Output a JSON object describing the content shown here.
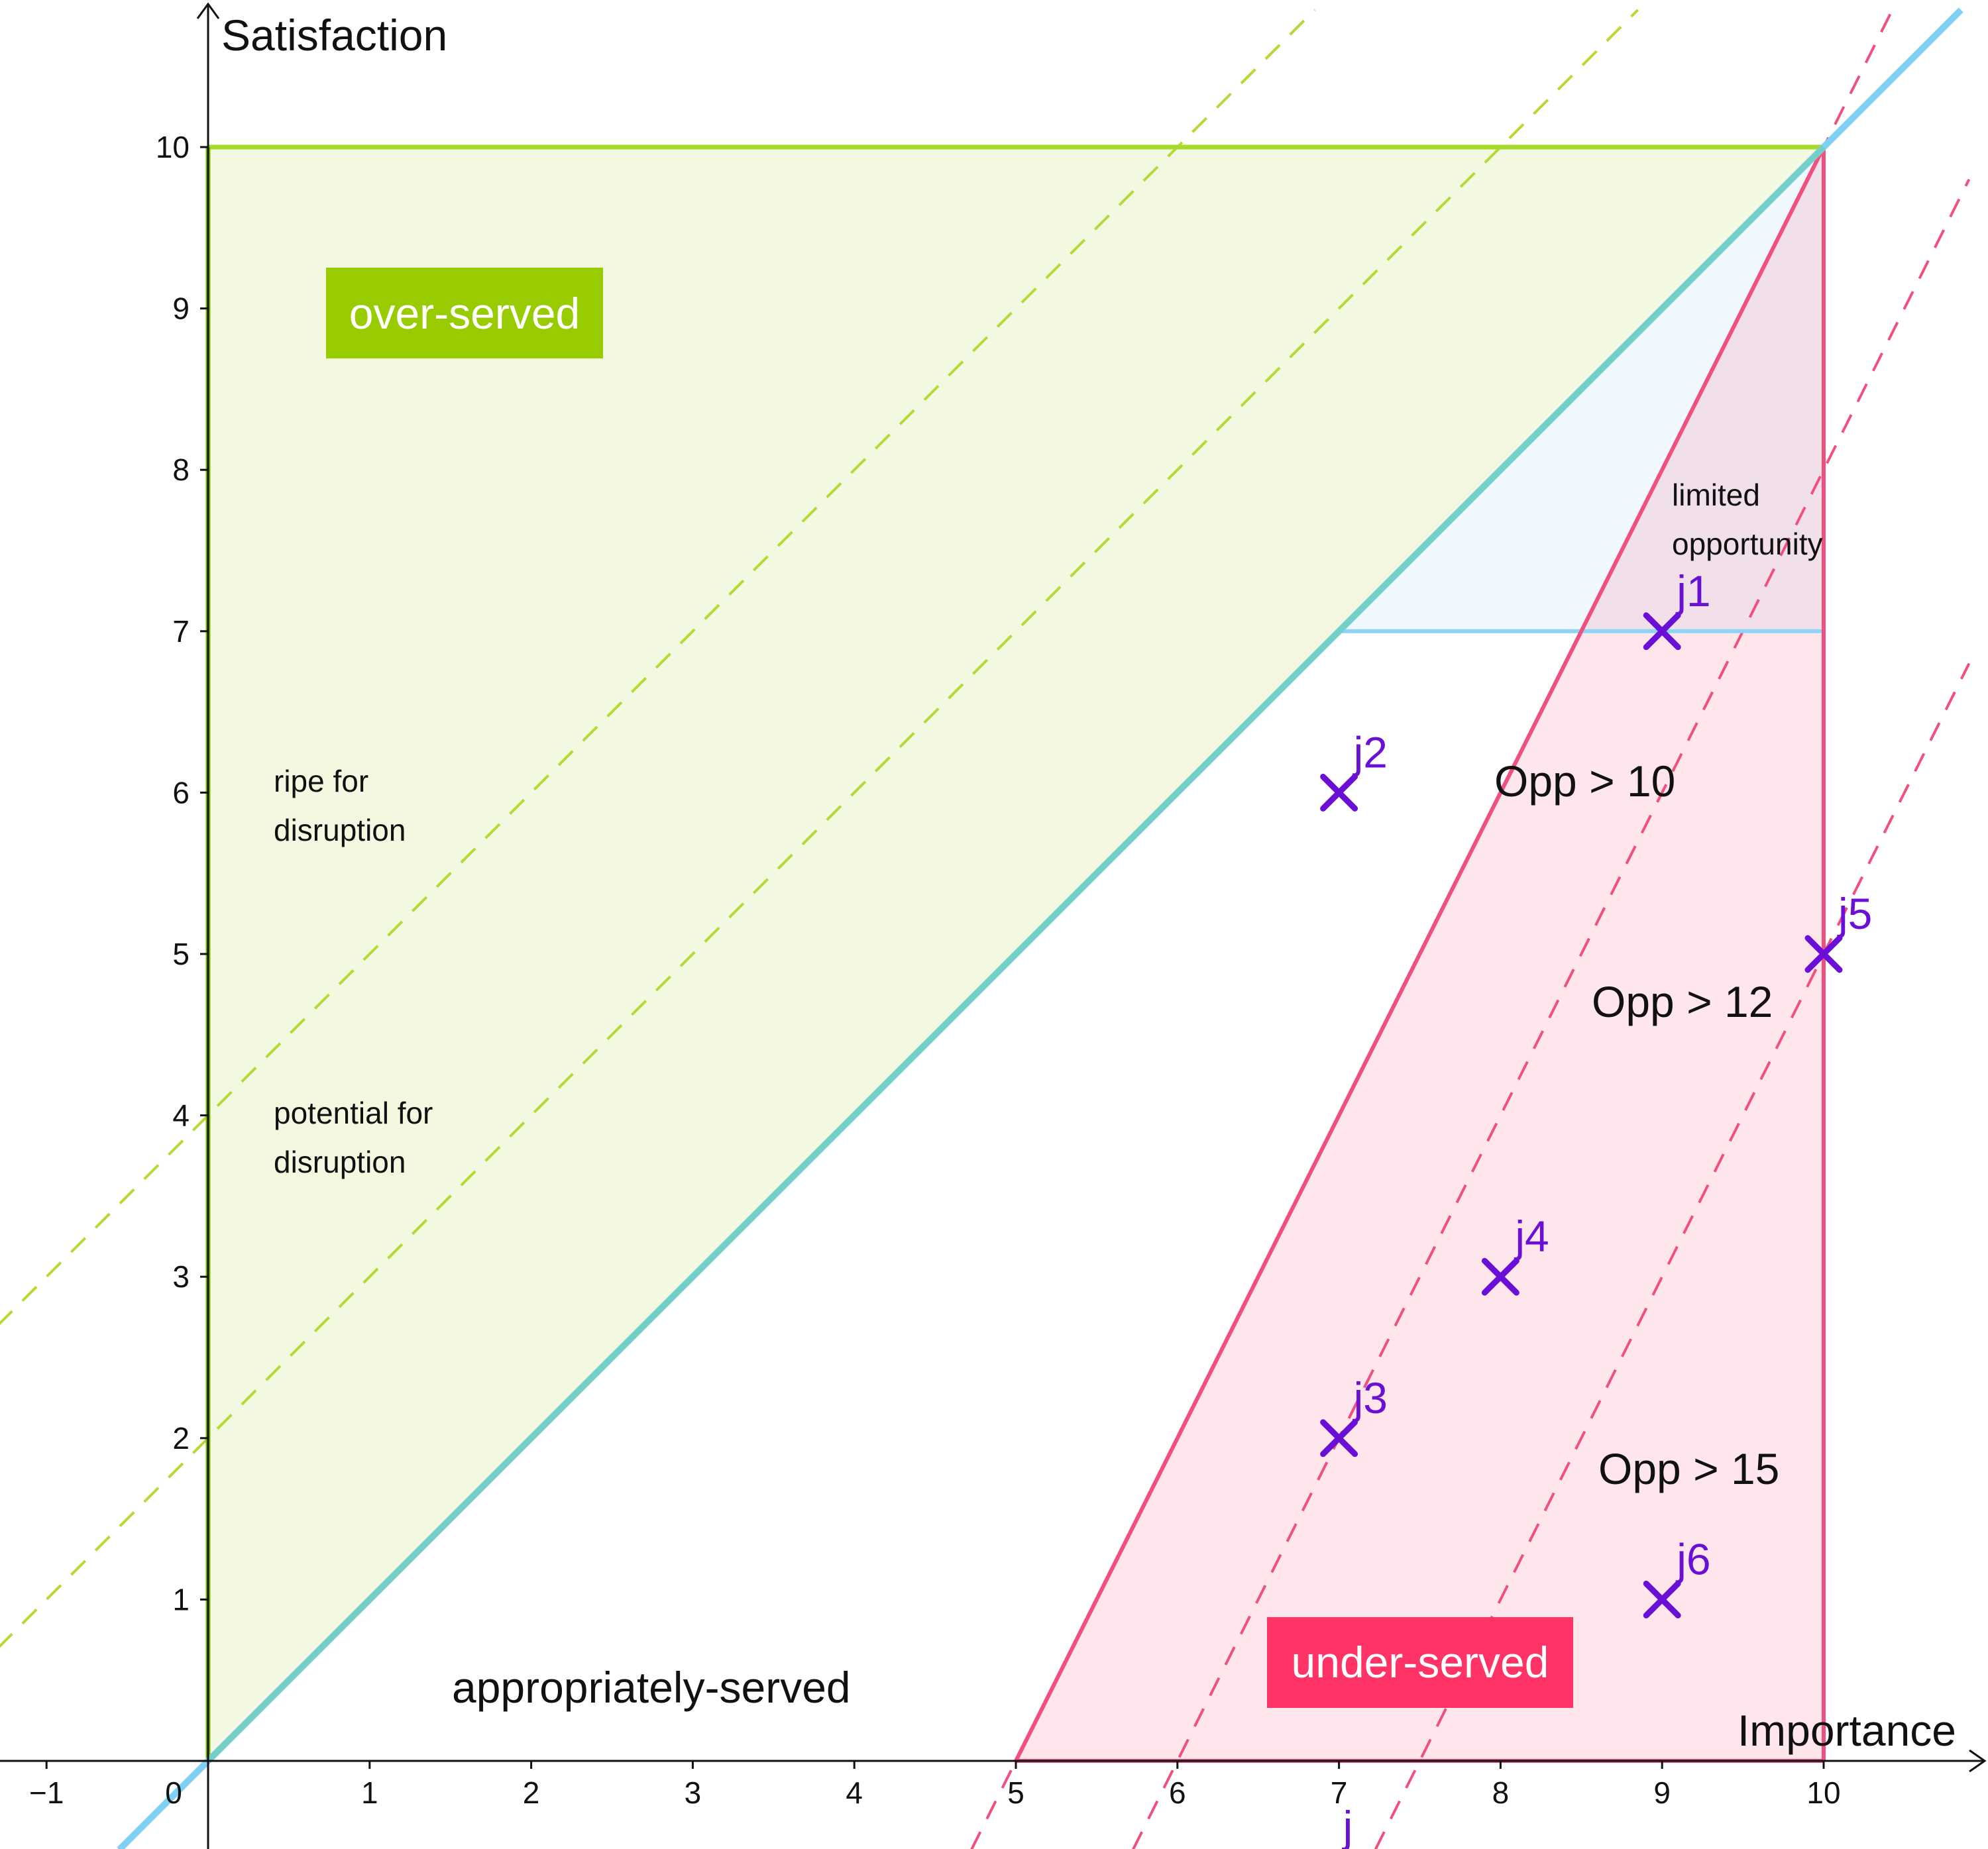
{
  "chart_data": {
    "type": "scatter",
    "xlabel": "Importance",
    "ylabel": "Satisfaction",
    "xlim": [
      -1.3,
      10.9
    ],
    "ylim": [
      -0.55,
      10.85
    ],
    "x_ticks": [
      -1,
      0,
      1,
      2,
      3,
      4,
      5,
      6,
      7,
      8,
      9,
      10
    ],
    "x_tick_labels": [
      "−1",
      "0",
      "1",
      "2",
      "3",
      "4",
      "5",
      "6",
      "7",
      "8",
      "9",
      "10"
    ],
    "y_ticks": [
      1,
      2,
      3,
      4,
      5,
      6,
      7,
      8,
      9,
      10
    ],
    "y_tick_labels": [
      "1",
      "2",
      "3",
      "4",
      "5",
      "6",
      "7",
      "8",
      "9",
      "10"
    ],
    "grid": false,
    "points": [
      {
        "label": "j1",
        "x": 9,
        "y": 7
      },
      {
        "label": "j2",
        "x": 7,
        "y": 6
      },
      {
        "label": "j3",
        "x": 7,
        "y": 2
      },
      {
        "label": "j4",
        "x": 8,
        "y": 3
      },
      {
        "label": "j5",
        "x": 10,
        "y": 5
      },
      {
        "label": "j6",
        "x": 9,
        "y": 1
      }
    ],
    "regions": {
      "over_served": {
        "label": "over-served",
        "polygon": [
          [
            0,
            0
          ],
          [
            0,
            10
          ],
          [
            10,
            10
          ]
        ],
        "color": "#9acd00"
      },
      "limited_opportunity": {
        "polygon": [
          [
            7,
            7
          ],
          [
            10,
            10
          ],
          [
            10,
            7
          ]
        ],
        "color": "#8fd3f4"
      },
      "under_served": {
        "label": "under-served",
        "polygon": [
          [
            5,
            0
          ],
          [
            10,
            10
          ],
          [
            10,
            0
          ]
        ],
        "color": "#ff3366"
      }
    },
    "lines": {
      "diagonal": {
        "slope": 1,
        "intercept": 0,
        "color": "#7fd0f5"
      },
      "disruption_lines": [
        {
          "slope": 1,
          "intercept": 2
        },
        {
          "slope": 1,
          "intercept": 4
        }
      ],
      "opportunity_lines": [
        {
          "slope": 2,
          "intercept": -10
        },
        {
          "slope": 2,
          "intercept": -12
        },
        {
          "slope": 2,
          "intercept": -15
        }
      ],
      "disruption_color": "#b5d935",
      "opportunity_color": "#f0507e"
    },
    "annotations": {
      "ripe": [
        "ripe for",
        "disruption"
      ],
      "potential": [
        "potential for",
        "disruption"
      ],
      "limited": [
        "limited",
        "opportunity"
      ],
      "appropriately_served": "appropriately-served",
      "opp10": "Opp > 10",
      "opp12": "Opp > 12",
      "opp15": "Opp > 15",
      "j_marker": "j"
    }
  }
}
